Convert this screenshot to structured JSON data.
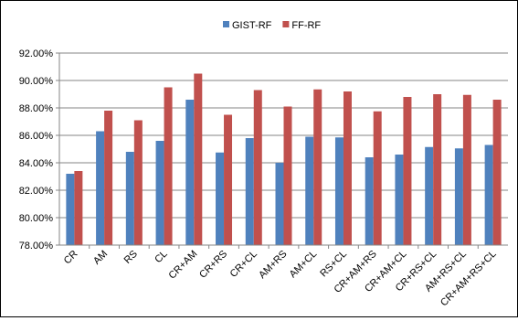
{
  "chart_data": {
    "type": "bar",
    "categories": [
      "CR",
      "AM",
      "RS",
      "CL",
      "CR+AM",
      "CR+RS",
      "CR+CL",
      "AM+RS",
      "AM+CL",
      "RS+CL",
      "CR+AM+RS",
      "CR+AM+CL",
      "CR+RS+CL",
      "AM+RS+CL",
      "CR+AM+RS+CL"
    ],
    "series": [
      {
        "name": "GIST-RF",
        "color": "#4f81bd",
        "values": [
          83.2,
          86.3,
          84.8,
          85.6,
          88.6,
          84.75,
          85.8,
          84.0,
          85.9,
          85.85,
          84.4,
          84.6,
          85.15,
          85.05,
          85.3
        ]
      },
      {
        "name": "FF-RF",
        "color": "#c0504d",
        "values": [
          83.4,
          87.8,
          87.1,
          89.5,
          90.5,
          87.5,
          89.3,
          88.1,
          89.35,
          89.2,
          87.75,
          88.8,
          89.0,
          88.95,
          88.6
        ]
      }
    ],
    "y_ticks": [
      "78.00%",
      "80.00%",
      "82.00%",
      "84.00%",
      "86.00%",
      "88.00%",
      "90.00%",
      "92.00%"
    ],
    "ylim": [
      78,
      92
    ],
    "grid": true,
    "legend_position": "top-center"
  }
}
